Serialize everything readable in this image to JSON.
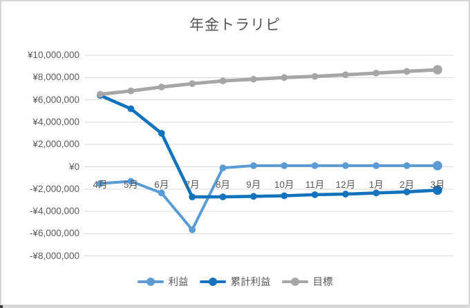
{
  "page": {
    "background": "#FFFFFF",
    "frame_border_color": "#D6D6D6",
    "bottom_band_color": "#D8D8D8"
  },
  "chart_data": {
    "type": "line",
    "title": "年金トラリピ",
    "title_color": "#535353",
    "categories": [
      "4月",
      "5月",
      "6月",
      "7月",
      "8月",
      "9月",
      "10月",
      "11月",
      "12月",
      "1月",
      "2月",
      "3月"
    ],
    "series": [
      {
        "name": "利益",
        "color": "#5B9BD5",
        "values": [
          -1500000,
          -1300000,
          -2350000,
          -5650000,
          -100000,
          100000,
          100000,
          100000,
          100000,
          100000,
          100000,
          100000
        ]
      },
      {
        "name": "累計利益",
        "color": "#1272BC",
        "values": [
          6400000,
          5200000,
          3000000,
          -2700000,
          -2700000,
          -2650000,
          -2600000,
          -2500000,
          -2450000,
          -2350000,
          -2250000,
          -2100000
        ]
      },
      {
        "name": "目標",
        "color": "#A6A6A6",
        "values": [
          6500000,
          6800000,
          7150000,
          7450000,
          7700000,
          7850000,
          8000000,
          8100000,
          8250000,
          8400000,
          8550000,
          8700000
        ]
      }
    ],
    "y_axis": {
      "min": -8000000,
      "max": 10000000,
      "step": 2000000,
      "tick_labels": [
        "¥10,000,000",
        "¥8,000,000",
        "¥6,000,000",
        "¥4,000,000",
        "¥2,000,000",
        "¥0",
        "-¥2,000,000",
        "-¥4,000,000",
        "-¥6,000,000",
        "-¥8,000,000"
      ],
      "label_color": "#595959"
    },
    "grid": true,
    "gridline_color": "#D9D9D9",
    "legend_position": "bottom"
  }
}
